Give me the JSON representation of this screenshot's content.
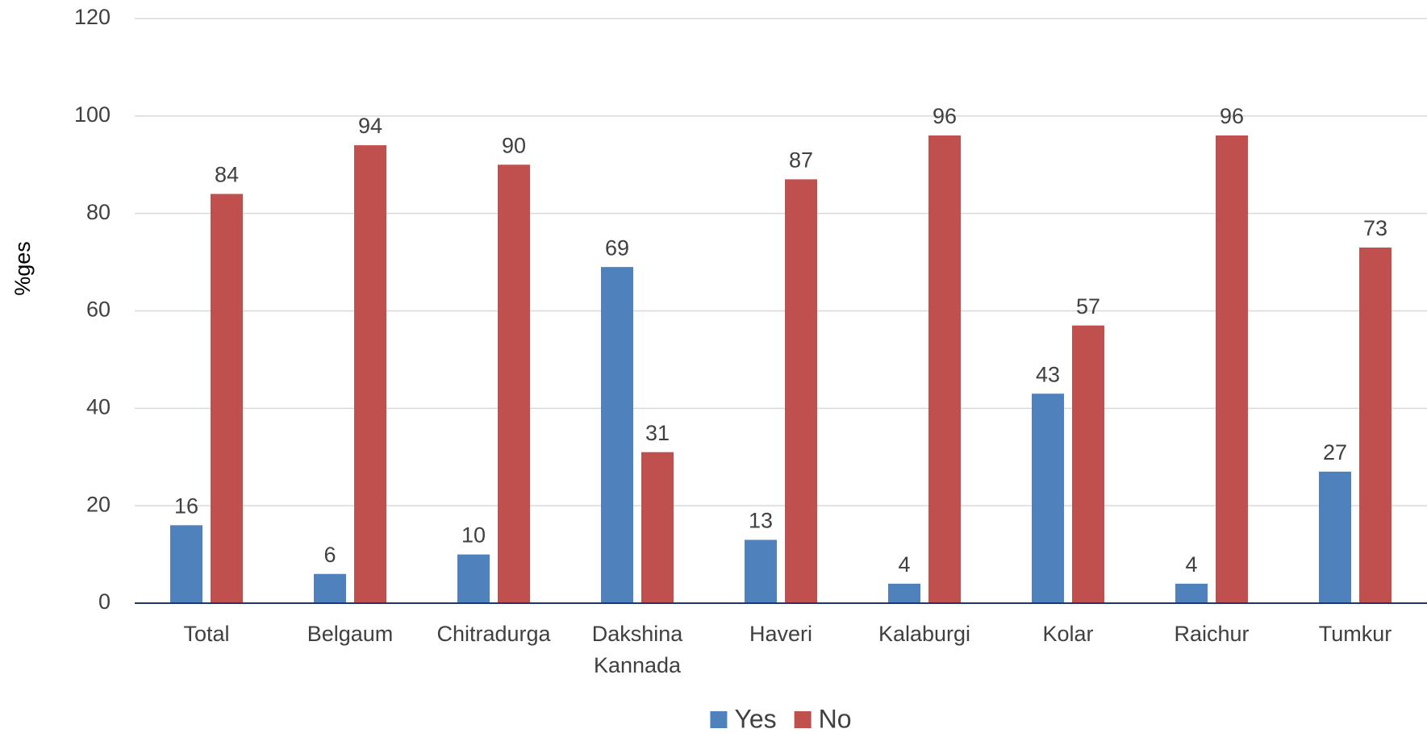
{
  "chart_data": {
    "type": "bar",
    "y_label": "%ges",
    "categories": [
      "Total",
      "Belgaum",
      "Chitradurga",
      "Dakshina Kannada",
      "Haveri",
      "Kalaburgi",
      "Kolar",
      "Raichur",
      "Tumkur"
    ],
    "series": [
      {
        "name": "Yes",
        "color": "#4f81bd",
        "values": [
          16,
          6,
          10,
          69,
          13,
          4,
          43,
          4,
          27
        ]
      },
      {
        "name": "No",
        "color": "#c0504d",
        "values": [
          84,
          94,
          90,
          31,
          87,
          96,
          57,
          96,
          73
        ]
      }
    ],
    "ylim": [
      0,
      120
    ],
    "yticks": [
      0,
      20,
      40,
      60,
      80,
      100,
      120
    ],
    "grid": true,
    "legend": "bottom"
  }
}
